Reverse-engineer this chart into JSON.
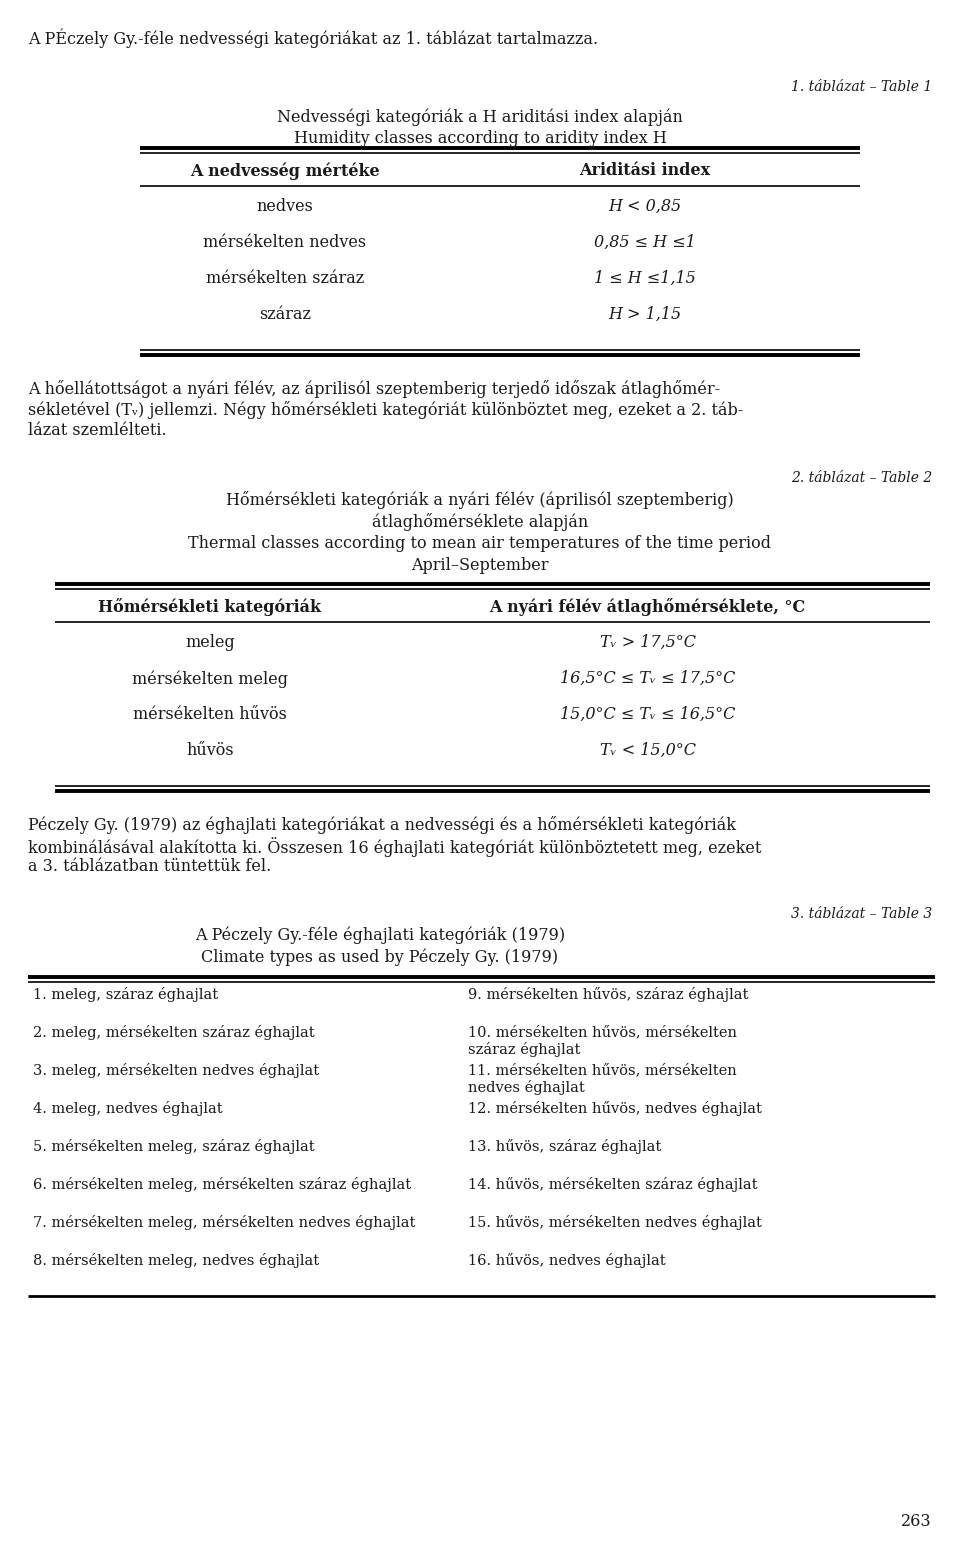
{
  "bg_color": "#ffffff",
  "text_color": "#1a1a1a",
  "fs_body": 11.5,
  "fs_small": 10.5,
  "fs_italic_label": 10.0,
  "intro_text": "A PÉczely Gy.-féle nedvességi kategóriákat az 1. táblázat tartalmazza.",
  "table1_label": "1. táblázat – Table 1",
  "table1_title_hu": "Nedvességi kategóriák a H ariditási index alapján",
  "table1_title_en": "Humidity classes according to aridity index H",
  "table1_col1_header": "A nedvesség mértéke",
  "table1_col2_header": "Ariditási index",
  "table1_rows": [
    [
      "nedves",
      "H < 0,85"
    ],
    [
      "mérsékelten nedves",
      "0,85 ≤ H ≤1"
    ],
    [
      "mérsékelten száraz",
      "1 ≤ H ≤1,15"
    ],
    [
      "száraz",
      "H > 1,15"
    ]
  ],
  "para1_lines": [
    "A hőellátottságot a nyári félév, az áprilisól szeptemberig terjedő időszak átlaghőmér-",
    "sékletével (Tᵥ) jellemzi. Négy hőmérsékleti kategóriát különböztet meg, ezeket a 2. táb-",
    "lázat szemlélteti."
  ],
  "table2_label": "2. táblázat – Table 2",
  "table2_title_hu1": "Hőmérsékleti kategóriák a nyári félév (áprilisól szeptemberig)",
  "table2_title_hu2": "átlaghőmérséklete alapján",
  "table2_title_en1": "Thermal classes according to mean air temperatures of the time period",
  "table2_title_en2": "April–September",
  "table2_col1_header": "Hőmérsékleti kategóriák",
  "table2_col2_header": "A nyári félév átlaghőmérséklete, °C",
  "table2_rows": [
    [
      "meleg",
      "Tᵥ > 17,5°C"
    ],
    [
      "mérsékelten meleg",
      "16,5°C ≤ Tᵥ ≤ 17,5°C"
    ],
    [
      "mérsékelten hűvös",
      "15,0°C ≤ Tᵥ ≤ 16,5°C"
    ],
    [
      "hűvös",
      "Tᵥ < 15,0°C"
    ]
  ],
  "para2_lines": [
    "Péczely Gy. (1979) az éghajlati kategóriákat a nedvességi és a hőmérsékleti kategóriák",
    "kombinálásával alakította ki. Összesen 16 éghajlati kategóriát különböztetett meg, ezeket",
    "a 3. táblázatban tüntettük fel."
  ],
  "table3_label": "3. táblázat – Table 3",
  "table3_title_hu": "A Péczely Gy.-féle éghajlati kategóriák (1979)",
  "table3_title_en": "Climate types as used by Péczely Gy. (1979)",
  "table3_col1": [
    "1. meleg, száraz éghajlat",
    "2. meleg, mérsékelten száraz éghajlat",
    "3. meleg, mérsékelten nedves éghajlat",
    "4. meleg, nedves éghajlat",
    "5. mérsékelten meleg, száraz éghajlat",
    "6. mérsékelten meleg, mérsékelten száraz éghajlat",
    "7. mérsékelten meleg, mérsékelten nedves éghajlat",
    "8. mérsékelten meleg, nedves éghajlat"
  ],
  "table3_col2": [
    "9. mérsékelten hűvös, száraz éghajlat",
    "10. mérsékelten hűvös, mérsékelten\nszáraz éghajlat",
    "11. mérsékelten hűvös, mérsékelten\nnedves éghajlat",
    "12. mérsékelten hűvös, nedves éghajlat",
    "13. hűvös, száraz éghajlat",
    "14. hűvös, mérsékelten száraz éghajlat",
    "15. hűvös, mérsékelten nedves éghajlat",
    "16. hűvös, nedves éghajlat"
  ],
  "page_number": "263"
}
